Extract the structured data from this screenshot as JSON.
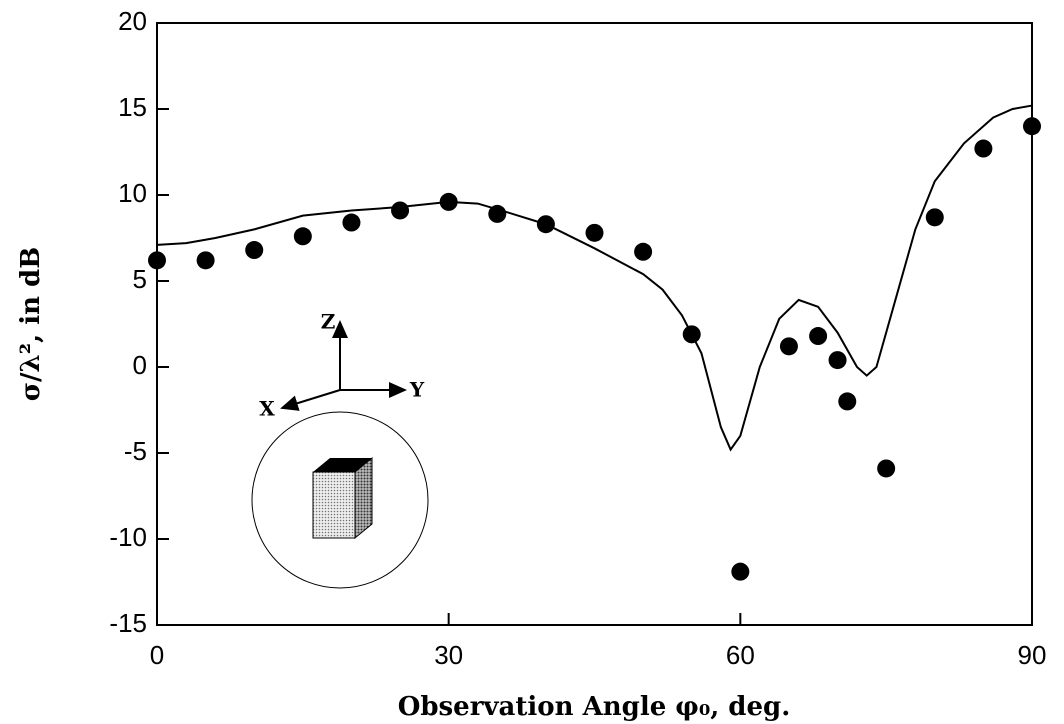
{
  "chart_data": {
    "type": "line",
    "x_label": "Observation Angle φ₀, deg.",
    "y_label": "σ/λ², in dB",
    "xlim": [
      0,
      90
    ],
    "xticks": [
      0,
      30,
      60,
      90
    ],
    "ylim": [
      -15,
      20
    ],
    "yticks": [
      -15,
      -10,
      -5,
      0,
      5,
      10,
      15,
      20
    ],
    "series": [
      {
        "style": "line",
        "color": "#000000",
        "x": [
          0,
          3,
          6,
          10,
          15,
          20,
          25,
          30,
          33,
          36,
          40,
          45,
          50,
          52,
          54,
          56,
          58,
          59,
          60,
          62,
          64,
          66,
          68,
          70,
          72,
          73,
          74,
          76,
          78,
          80,
          83,
          86,
          88,
          90
        ],
        "values": [
          7.1,
          7.2,
          7.5,
          8.0,
          8.8,
          9.1,
          9.3,
          9.6,
          9.5,
          9.0,
          8.3,
          6.9,
          5.4,
          4.5,
          3.0,
          0.8,
          -3.5,
          -4.8,
          -4.0,
          0,
          2.8,
          3.9,
          3.5,
          2.0,
          0,
          -0.5,
          0,
          4.0,
          8.0,
          10.8,
          13.0,
          14.5,
          15.0,
          15.2
        ]
      },
      {
        "style": "marker",
        "color": "#000000",
        "x": [
          0,
          5,
          10,
          15,
          20,
          25,
          30,
          35,
          40,
          45,
          50,
          55,
          60,
          65,
          68,
          70,
          71,
          75,
          80,
          85,
          90
        ],
        "values": [
          6.2,
          6.2,
          6.8,
          7.6,
          8.4,
          9.1,
          9.6,
          8.9,
          8.3,
          7.8,
          6.7,
          1.9,
          -11.9,
          1.2,
          1.8,
          0.4,
          -2.0,
          -5.9,
          8.7,
          12.7,
          14.0
        ]
      }
    ],
    "inset_labels": {
      "z": "Z",
      "y": "Y",
      "x": "X"
    }
  }
}
